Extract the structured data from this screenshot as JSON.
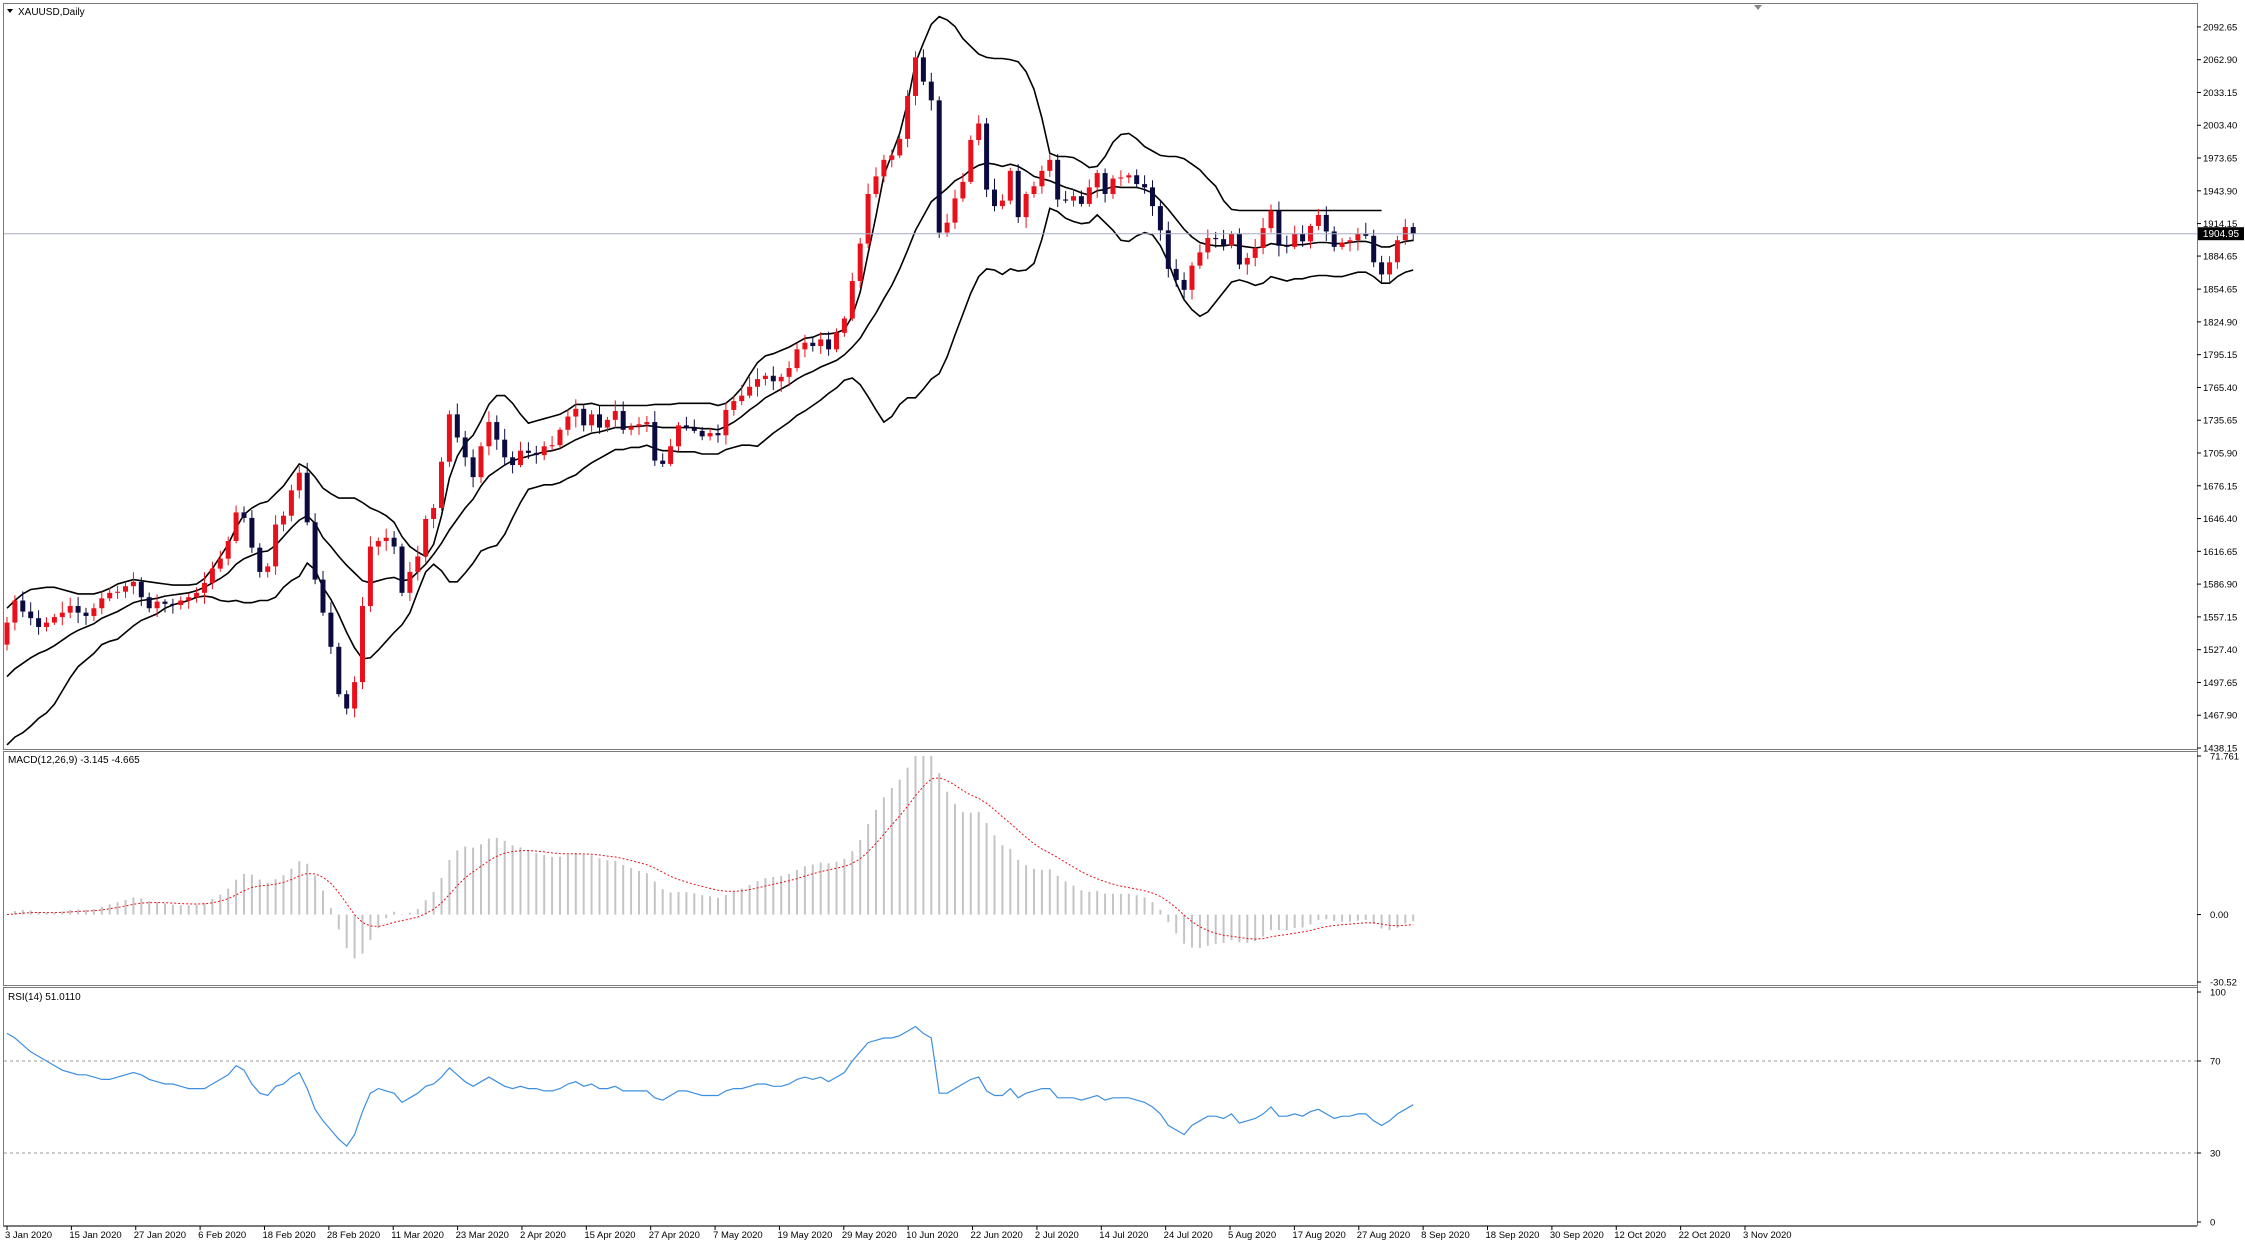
{
  "window": {
    "symbol_label": "XAUUSD,Daily"
  },
  "current_price_label": "1904.95",
  "chart_data": [
    {
      "type": "candlestick",
      "title": "XAUUSD,Daily",
      "ylim": [
        1438.15,
        2108.0
      ],
      "y_ticks": [
        "2092.65",
        "2062.90",
        "2033.15",
        "2003.40",
        "1973.65",
        "1943.90",
        "1914.15",
        "1884.65",
        "1854.65",
        "1824.90",
        "1795.15",
        "1765.40",
        "1735.65",
        "1705.90",
        "1676.15",
        "1646.40",
        "1616.65",
        "1586.90",
        "1557.15",
        "1527.40",
        "1497.65",
        "1467.90",
        "1438.15"
      ],
      "x_labels": [
        "3 Jan 2020",
        "15 Jan 2020",
        "27 Jan 2020",
        "6 Feb 2020",
        "18 Feb 2020",
        "28 Feb 2020",
        "11 Mar 2020",
        "23 Mar 2020",
        "2 Apr 2020",
        "15 Apr 2020",
        "27 Apr 2020",
        "7 May 2020",
        "19 May 2020",
        "29 May 2020",
        "10 Jun 2020",
        "22 Jun 2020",
        "2 Jul 2020",
        "14 Jul 2020",
        "24 Jul 2020",
        "5 Aug 2020",
        "17 Aug 2020",
        "27 Aug 2020",
        "8 Sep 2020",
        "18 Sep 2020",
        "30 Sep 2020",
        "12 Oct 2020",
        "22 Oct 2020",
        "3 Nov 2020"
      ],
      "current_price": 1904.95,
      "colors": {
        "bull": "#e8111b",
        "bear": "#0b0b40",
        "bands": "#000000",
        "price_line": "#a8acc8"
      },
      "close": [
        1552,
        1572,
        1562,
        1556,
        1548,
        1552,
        1557,
        1561,
        1567,
        1561,
        1558,
        1565,
        1574,
        1579,
        1580,
        1585,
        1589,
        1575,
        1565,
        1571,
        1569,
        1568,
        1572,
        1575,
        1579,
        1588,
        1601,
        1610,
        1626,
        1652,
        1647,
        1620,
        1598,
        1603,
        1641,
        1649,
        1672,
        1688,
        1643,
        1591,
        1561,
        1530,
        1487,
        1474,
        1498,
        1567,
        1621,
        1626,
        1629,
        1621,
        1579,
        1598,
        1612,
        1646,
        1656,
        1698,
        1741,
        1720,
        1702,
        1684,
        1712,
        1734,
        1718,
        1702,
        1695,
        1708,
        1706,
        1704,
        1712,
        1713,
        1727,
        1739,
        1746,
        1731,
        1741,
        1729,
        1736,
        1744,
        1727,
        1730,
        1732,
        1734,
        1699,
        1696,
        1712,
        1731,
        1729,
        1726,
        1721,
        1724,
        1722,
        1745,
        1753,
        1758,
        1766,
        1773,
        1776,
        1771,
        1775,
        1783,
        1800,
        1806,
        1803,
        1809,
        1800,
        1815,
        1828,
        1862,
        1896,
        1941,
        1957,
        1972,
        1976,
        1991,
        2030,
        2065,
        2043,
        2026,
        1906,
        1915,
        1937,
        1952,
        1990,
        2005,
        1945,
        1930,
        1935,
        1962,
        1920,
        1941,
        1948,
        1962,
        1972,
        1936,
        1935,
        1939,
        1932,
        1947,
        1960,
        1941,
        1955,
        1956,
        1958,
        1950,
        1947,
        1930,
        1908,
        1873,
        1863,
        1854,
        1876,
        1888,
        1901,
        1900,
        1894,
        1905,
        1877,
        1883,
        1892,
        1910,
        1926,
        1894,
        1893,
        1905,
        1898,
        1912,
        1922,
        1907,
        1893,
        1897,
        1899,
        1905,
        1903,
        1879,
        1868,
        1879,
        1899,
        1911,
        1904.95
      ],
      "bollinger_upper": [
        1565,
        1572,
        1578,
        1582,
        1583,
        1584,
        1584,
        1582,
        1580,
        1578,
        1578,
        1578,
        1580,
        1583,
        1587,
        1589,
        1591,
        1590,
        1589,
        1588,
        1587,
        1586,
        1586,
        1586,
        1587,
        1592,
        1601,
        1612,
        1623,
        1638,
        1650,
        1656,
        1660,
        1662,
        1669,
        1676,
        1686,
        1696,
        1692,
        1684,
        1674,
        1669,
        1665,
        1665,
        1665,
        1661,
        1656,
        1653,
        1649,
        1643,
        1630,
        1621,
        1616,
        1612,
        1623,
        1649,
        1683,
        1703,
        1715,
        1722,
        1735,
        1750,
        1758,
        1758,
        1751,
        1741,
        1733,
        1735,
        1737,
        1739,
        1741,
        1745,
        1750,
        1750,
        1751,
        1749,
        1749,
        1749,
        1749,
        1749,
        1749,
        1749,
        1750,
        1750,
        1750,
        1751,
        1751,
        1751,
        1751,
        1751,
        1749,
        1751,
        1757,
        1765,
        1777,
        1788,
        1794,
        1796,
        1799,
        1802,
        1806,
        1810,
        1811,
        1814,
        1814,
        1815,
        1818,
        1830,
        1852,
        1887,
        1921,
        1958,
        1977,
        1996,
        2024,
        2060,
        2078,
        2095,
        2102,
        2099,
        2093,
        2082,
        2075,
        2068,
        2065,
        2064,
        2064,
        2063,
        2061,
        2052,
        2036,
        2010,
        1978,
        1975,
        1975,
        1974,
        1970,
        1965,
        1966,
        1975,
        1988,
        1995,
        1996,
        1991,
        1984,
        1980,
        1976,
        1975,
        1975,
        1973,
        1968,
        1963,
        1955,
        1948,
        1935,
        1927,
        1926,
        1926,
        1926,
        1926,
        1926,
        1926,
        1926,
        1926,
        1926,
        1926,
        1926,
        1926,
        1926,
        1926,
        1926,
        1926,
        1926,
        1926,
        1926
      ],
      "bollinger_middle": [
        1503,
        1510,
        1515,
        1520,
        1524,
        1527,
        1531,
        1536,
        1541,
        1545,
        1548,
        1551,
        1556,
        1559,
        1562,
        1566,
        1570,
        1572,
        1573,
        1574,
        1576,
        1577,
        1578,
        1579,
        1581,
        1584,
        1588,
        1592,
        1597,
        1605,
        1610,
        1613,
        1616,
        1617,
        1622,
        1630,
        1638,
        1645,
        1649,
        1642,
        1629,
        1621,
        1612,
        1604,
        1597,
        1590,
        1588,
        1590,
        1592,
        1593,
        1590,
        1591,
        1598,
        1605,
        1614,
        1624,
        1636,
        1646,
        1656,
        1664,
        1676,
        1685,
        1690,
        1695,
        1699,
        1701,
        1703,
        1705,
        1707,
        1708,
        1710,
        1714,
        1718,
        1721,
        1724,
        1725,
        1727,
        1729,
        1729,
        1730,
        1730,
        1731,
        1730,
        1729,
        1729,
        1729,
        1729,
        1729,
        1728,
        1728,
        1727,
        1730,
        1734,
        1739,
        1745,
        1750,
        1756,
        1760,
        1764,
        1768,
        1773,
        1777,
        1780,
        1784,
        1787,
        1790,
        1795,
        1802,
        1810,
        1822,
        1833,
        1846,
        1858,
        1873,
        1890,
        1908,
        1921,
        1934,
        1940,
        1946,
        1953,
        1957,
        1963,
        1967,
        1969,
        1968,
        1966,
        1968,
        1966,
        1962,
        1957,
        1955,
        1953,
        1950,
        1947,
        1945,
        1942,
        1940,
        1944,
        1945,
        1948,
        1947,
        1947,
        1947,
        1945,
        1942,
        1935,
        1927,
        1918,
        1909,
        1902,
        1897,
        1895,
        1894,
        1894,
        1895,
        1894,
        1893,
        1892,
        1893,
        1896,
        1895,
        1894,
        1895,
        1895,
        1896,
        1897,
        1897,
        1896,
        1896,
        1897,
        1898,
        1898,
        1896,
        1893,
        1893,
        1896,
        1898,
        1899
      ],
      "bollinger_lower": [
        1441,
        1448,
        1452,
        1458,
        1465,
        1470,
        1478,
        1490,
        1502,
        1512,
        1518,
        1524,
        1532,
        1535,
        1537,
        1543,
        1549,
        1554,
        1557,
        1560,
        1565,
        1568,
        1570,
        1572,
        1575,
        1576,
        1575,
        1572,
        1571,
        1572,
        1570,
        1570,
        1572,
        1572,
        1575,
        1584,
        1590,
        1594,
        1606,
        1600,
        1584,
        1573,
        1559,
        1543,
        1529,
        1519,
        1520,
        1527,
        1535,
        1543,
        1550,
        1561,
        1580,
        1598,
        1605,
        1599,
        1589,
        1589,
        1597,
        1606,
        1617,
        1620,
        1622,
        1632,
        1647,
        1661,
        1673,
        1675,
        1677,
        1677,
        1679,
        1683,
        1686,
        1692,
        1697,
        1701,
        1705,
        1709,
        1709,
        1711,
        1711,
        1713,
        1710,
        1708,
        1708,
        1707,
        1707,
        1707,
        1705,
        1705,
        1705,
        1709,
        1711,
        1713,
        1713,
        1712,
        1718,
        1724,
        1729,
        1734,
        1740,
        1744,
        1749,
        1754,
        1760,
        1765,
        1772,
        1774,
        1768,
        1757,
        1745,
        1734,
        1739,
        1750,
        1756,
        1756,
        1764,
        1773,
        1778,
        1793,
        1813,
        1832,
        1851,
        1866,
        1873,
        1872,
        1868,
        1873,
        1871,
        1872,
        1878,
        1900,
        1928,
        1925,
        1919,
        1916,
        1914,
        1915,
        1922,
        1915,
        1908,
        1899,
        1898,
        1903,
        1906,
        1904,
        1894,
        1879,
        1860,
        1845,
        1836,
        1830,
        1834,
        1843,
        1852,
        1861,
        1863,
        1861,
        1858,
        1860,
        1866,
        1864,
        1862,
        1864,
        1864,
        1866,
        1867,
        1867,
        1866,
        1866,
        1868,
        1870,
        1870,
        1866,
        1860,
        1860,
        1866,
        1870,
        1872
      ]
    },
    {
      "type": "macd",
      "title": "MACD(12,26,9) -3.145 -4.665",
      "params": [
        12,
        26,
        9
      ],
      "last_values": [
        -3.145,
        -4.665
      ],
      "ylim": [
        -30.52,
        71.761
      ],
      "y_ticks": [
        "71.761",
        "0.00",
        "-30.52"
      ],
      "colors": {
        "histogram": "#c4c4c4",
        "signal": "#e8111b"
      }
    },
    {
      "type": "line",
      "title": "RSI(14) 51.0110",
      "period": 14,
      "last_value": 51.011,
      "ylim": [
        0,
        100
      ],
      "y_ticks": [
        "100",
        "70",
        "30",
        "0"
      ],
      "levels": [
        70,
        30
      ],
      "colors": {
        "line": "#3d8fe0",
        "levels": "#9a9a9a"
      },
      "values": [
        82,
        80,
        77,
        74,
        72,
        70,
        68,
        66,
        65,
        64,
        64,
        63,
        62,
        62,
        63,
        64,
        65,
        64,
        62,
        61,
        60,
        60,
        59,
        58,
        58,
        58,
        60,
        62,
        64,
        68,
        66,
        60,
        56,
        55,
        59,
        60,
        63,
        65,
        58,
        49,
        44,
        40,
        36,
        33,
        38,
        48,
        56,
        58,
        57,
        56,
        52,
        54,
        56,
        59,
        60,
        63,
        67,
        64,
        61,
        59,
        61,
        63,
        61,
        59,
        58,
        59,
        58,
        58,
        57,
        57,
        58,
        60,
        61,
        59,
        60,
        58,
        58,
        59,
        57,
        57,
        57,
        57,
        54,
        53,
        55,
        57,
        57,
        56,
        55,
        55,
        55,
        57,
        58,
        58,
        59,
        60,
        60,
        59,
        59,
        60,
        62,
        63,
        62,
        63,
        61,
        63,
        65,
        70,
        74,
        78,
        79,
        80,
        80,
        81,
        83,
        85,
        82,
        80,
        56,
        56,
        58,
        60,
        62,
        63,
        57,
        55,
        55,
        58,
        54,
        56,
        57,
        58,
        58,
        54,
        54,
        54,
        53,
        54,
        55,
        53,
        54,
        54,
        54,
        53,
        52,
        50,
        47,
        42,
        40,
        38,
        42,
        44,
        46,
        46,
        45,
        47,
        43,
        44,
        45,
        47,
        50,
        46,
        46,
        47,
        46,
        48,
        49,
        47,
        45,
        46,
        46,
        47,
        47,
        44,
        42,
        44,
        47,
        49,
        51.011
      ]
    }
  ]
}
